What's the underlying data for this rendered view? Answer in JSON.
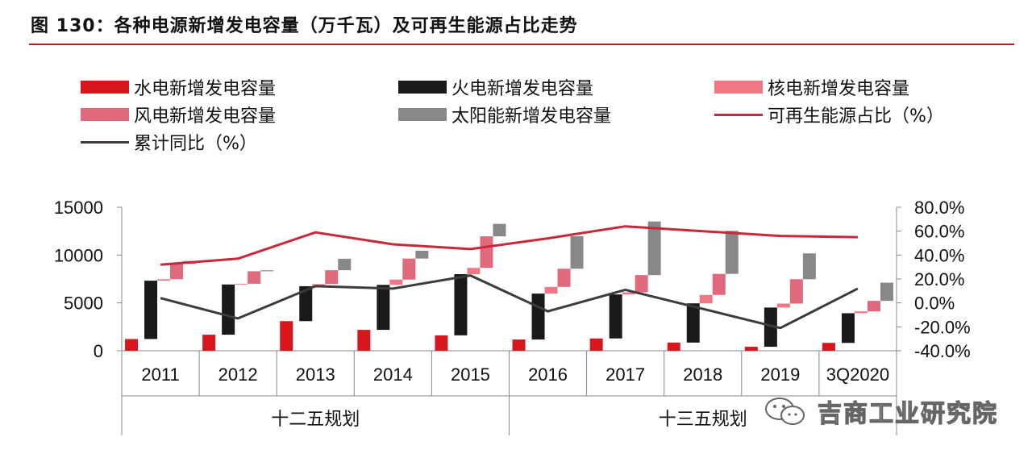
{
  "figure": {
    "title": "图 130：各种电源新增发电容量（万千瓦）及可再生能源占比走势",
    "watermark": "吉商工业研究院"
  },
  "colors": {
    "hydro": "#d7161d",
    "thermal": "#1a1a1a",
    "nuclear": "#f07884",
    "wind": "#e0697c",
    "solar": "#888888",
    "renewable_line": "#c8283a",
    "cumulative_line": "#3c3c3c",
    "rule": "#c4161c"
  },
  "legend": {
    "hydro": "水电新增发电容量",
    "thermal": "火电新增发电容量",
    "nuclear": "核电新增发电容量",
    "wind": "风电新增发电容量",
    "solar": "太阳能新增发电容量",
    "renewable": "可再生能源占比（%）",
    "cumulative": "累计同比（%）"
  },
  "chart_data": {
    "type": "bar",
    "categories": [
      "2011",
      "2012",
      "2013",
      "2014",
      "2015",
      "2016",
      "2017",
      "2018",
      "2019",
      "3Q2020"
    ],
    "groups": [
      "十二五规划",
      "十三五规划"
    ],
    "group_spans": [
      [
        0,
        4
      ],
      [
        5,
        9
      ]
    ],
    "left_axis": {
      "ylim": [
        0,
        15000
      ],
      "ticks": [
        "0",
        "5000",
        "10000",
        "15000"
      ]
    },
    "right_axis": {
      "ylim": [
        -0.4,
        0.8
      ],
      "ticks": [
        "-40.0%",
        "-20.0%",
        "0.0%",
        "20.0%",
        "40.0%",
        "60.0%",
        "80.0%"
      ]
    },
    "waterfall_bars": [
      {
        "key": "hydro",
        "values": [
          1225,
          1676,
          3096,
          2185,
          1608,
          1174,
          1287,
          854,
          417,
          823
        ]
      },
      {
        "key": "thermal",
        "values": [
          6100,
          5250,
          3650,
          4700,
          6400,
          4800,
          4600,
          4100,
          4100,
          3100
        ]
      },
      {
        "key": "nuclear",
        "values": [
          150,
          80,
          220,
          550,
          650,
          700,
          220,
          880,
          410,
          190
        ]
      },
      {
        "key": "wind",
        "values": [
          1600,
          1300,
          1450,
          2200,
          3300,
          1900,
          1800,
          2200,
          2550,
          1100
        ]
      },
      {
        "key": "solar",
        "values": [
          300,
          100,
          1200,
          820,
          1300,
          3400,
          5600,
          4500,
          2700,
          1900
        ]
      }
    ],
    "lines": [
      {
        "key": "renewable",
        "axis": "right",
        "values": [
          0.32,
          0.37,
          0.59,
          0.49,
          0.45,
          0.54,
          0.64,
          0.6,
          0.56,
          0.55
        ]
      },
      {
        "key": "cumulative",
        "axis": "right",
        "values": [
          0.04,
          -0.13,
          0.14,
          0.12,
          0.23,
          -0.07,
          0.11,
          -0.05,
          -0.21,
          0.12
        ]
      }
    ]
  }
}
